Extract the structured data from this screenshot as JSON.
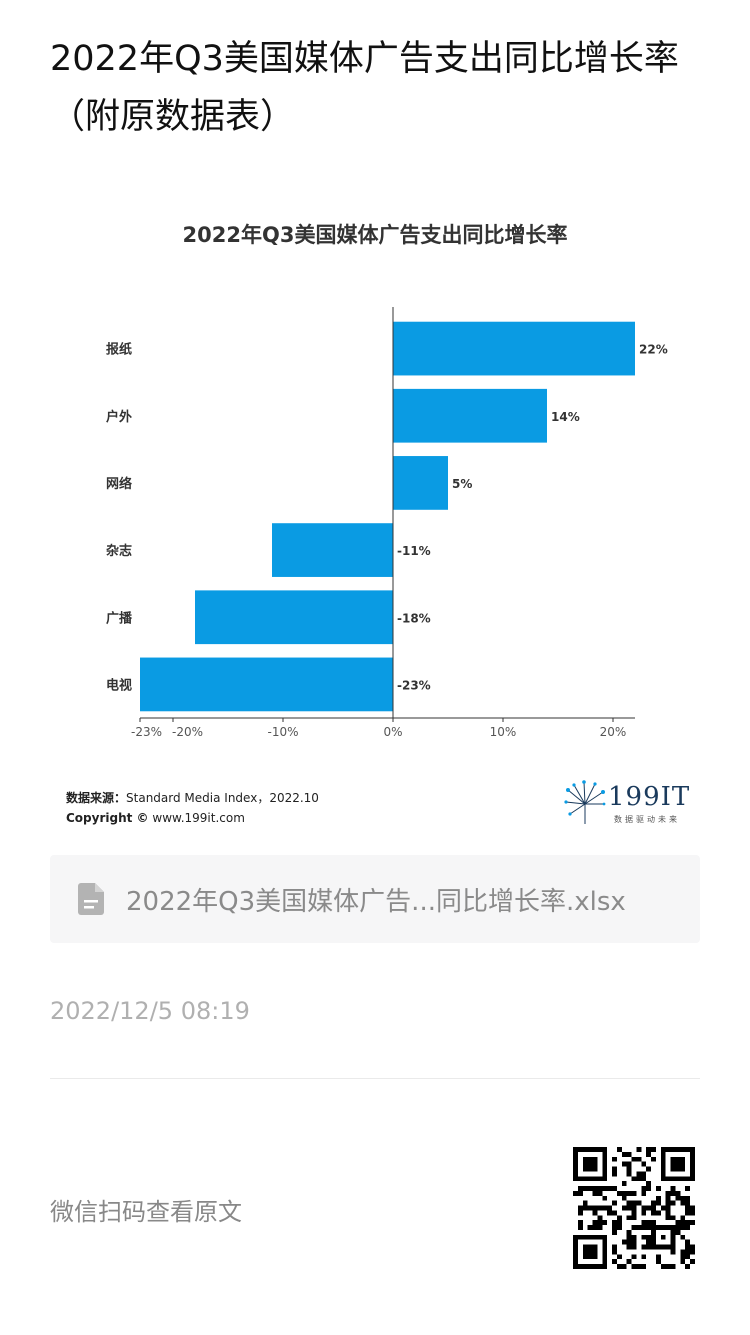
{
  "article": {
    "title": "2022年Q3美国媒体广告支出同比增长率（附原数据表）"
  },
  "chart_data": {
    "type": "bar",
    "orientation": "horizontal",
    "title": "2022年Q3美国媒体广告支出同比增长率",
    "categories": [
      "报纸",
      "户外",
      "网络",
      "杂志",
      "广播",
      "电视"
    ],
    "values": [
      22,
      14,
      5,
      -11,
      -18,
      -23
    ],
    "value_labels": [
      "22%",
      "14%",
      "5%",
      "-11%",
      "-18%",
      "-23%"
    ],
    "xlim": [
      -23,
      22
    ],
    "x_ticks": [
      -23,
      -20,
      -10,
      0,
      10,
      20
    ],
    "x_tick_labels": [
      "-23%",
      "-20%",
      "-10%",
      "0%",
      "10%",
      "20%"
    ],
    "bar_color": "#0a9be3",
    "grid": false,
    "legend": "none"
  },
  "source": {
    "label": "数据来源：",
    "text": "Standard Media Index，2022.10",
    "copyright_label": "Copyright ©",
    "copyright_text": "www.199it.com"
  },
  "logo": {
    "name": "199IT",
    "tagline": "数据驱动未来"
  },
  "file": {
    "icon": "document-icon",
    "name": "2022年Q3美国媒体广告...同比增长率.xlsx"
  },
  "meta": {
    "timestamp": "2022/12/5 08:19",
    "qr_prompt": "微信扫码查看原文"
  }
}
